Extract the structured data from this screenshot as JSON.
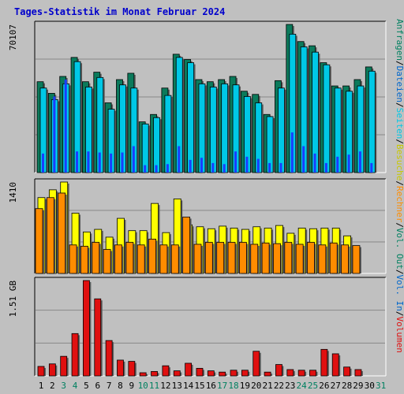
{
  "title": "Tages-Statistik im Monat Februar 2024",
  "colors": {
    "background": "#c0c0c0",
    "title": "#0000cc",
    "anfragen": "#0b7a5b",
    "dateien": "#00c8e6",
    "seiten": "#1a3cff",
    "besuche": "#ffff00",
    "rechner": "#ff8c00",
    "volumen": "#e01010",
    "weekend_label": "#008060",
    "weekday_label": "#000000"
  },
  "right_legend": [
    {
      "text": "Anfragen",
      "color": "#008060"
    },
    {
      "text": "/",
      "color": "#000000"
    },
    {
      "text": "Dateien",
      "color": "#0066cc"
    },
    {
      "text": "/",
      "color": "#000000"
    },
    {
      "text": "Seiten",
      "color": "#00c8e6"
    },
    {
      "text": "/",
      "color": "#000000"
    },
    {
      "text": "Besuche",
      "color": "#c8c800"
    },
    {
      "text": "/",
      "color": "#000000"
    },
    {
      "text": "Rechner",
      "color": "#ff8c00"
    },
    {
      "text": "/",
      "color": "#000000"
    },
    {
      "text": "Vol. Out",
      "color": "#008060"
    },
    {
      "text": "/",
      "color": "#000000"
    },
    {
      "text": "Vol. In",
      "color": "#0066cc"
    },
    {
      "text": "/",
      "color": "#000000"
    },
    {
      "text": "Volumen",
      "color": "#e01010"
    }
  ],
  "chart_data": [
    {
      "type": "bar",
      "panel": "anfragen-dateien-seiten",
      "ylabel": "70107",
      "ylim": [
        0,
        70107
      ],
      "grid": true,
      "categories": [
        "1",
        "2",
        "3",
        "4",
        "5",
        "6",
        "7",
        "8",
        "9",
        "10",
        "11",
        "12",
        "13",
        "14",
        "15",
        "16",
        "17",
        "18",
        "19",
        "20",
        "21",
        "22",
        "23",
        "24",
        "25",
        "26",
        "27",
        "28",
        "29",
        "30",
        "31"
      ],
      "weekend_days": [
        3,
        4,
        10,
        11,
        17,
        18,
        24,
        25,
        31
      ],
      "series": [
        {
          "name": "Anfragen",
          "values": [
            43000,
            37500,
            45500,
            54500,
            43000,
            47500,
            33000,
            44000,
            47000,
            24000,
            27500,
            40000,
            56000,
            53500,
            44000,
            43000,
            44000,
            45500,
            38500,
            37000,
            27500,
            43500,
            70107,
            62000,
            60000,
            52000,
            41000,
            41000,
            44000,
            50000,
            null
          ]
        },
        {
          "name": "Dateien",
          "values": [
            40000,
            34500,
            42000,
            52500,
            40500,
            45000,
            30000,
            41500,
            40000,
            23000,
            26000,
            36500,
            54500,
            52000,
            42000,
            40500,
            42000,
            41500,
            36000,
            33000,
            26500,
            40000,
            65500,
            59500,
            57000,
            51000,
            40000,
            38500,
            41000,
            48000,
            null
          ]
        },
        {
          "name": "Seiten",
          "values": [
            9000,
            36000,
            44000,
            10000,
            10000,
            9500,
            9000,
            9500,
            12500,
            3500,
            3500,
            4000,
            12500,
            6000,
            7000,
            4500,
            4000,
            10000,
            7500,
            6500,
            4500,
            4500,
            19000,
            12500,
            9000,
            4500,
            7500,
            8500,
            10000,
            4500,
            null
          ]
        }
      ]
    },
    {
      "type": "bar",
      "panel": "besuche-rechner",
      "ylabel": "1410",
      "ylim": [
        0,
        1410
      ],
      "grid": true,
      "categories": [
        "1",
        "2",
        "3",
        "4",
        "5",
        "6",
        "7",
        "8",
        "9",
        "10",
        "11",
        "12",
        "13",
        "14",
        "15",
        "16",
        "17",
        "18",
        "19",
        "20",
        "21",
        "22",
        "23",
        "24",
        "25",
        "26",
        "27",
        "28",
        "29",
        "30",
        "31"
      ],
      "series": [
        {
          "name": "Besuche",
          "values": [
            1170,
            1290,
            1410,
            930,
            640,
            680,
            560,
            850,
            660,
            660,
            1080,
            630,
            1150,
            750,
            720,
            690,
            730,
            700,
            680,
            720,
            700,
            740,
            620,
            700,
            690,
            700,
            700,
            580,
            null,
            null,
            null
          ]
        },
        {
          "name": "Rechner",
          "values": [
            1000,
            1170,
            1240,
            440,
            420,
            480,
            370,
            440,
            480,
            440,
            530,
            440,
            440,
            870,
            450,
            480,
            480,
            480,
            480,
            450,
            470,
            460,
            480,
            450,
            480,
            440,
            470,
            440,
            430,
            null,
            null
          ]
        }
      ]
    },
    {
      "type": "bar",
      "panel": "volumen",
      "ylabel": "1.51 GB",
      "ylim": [
        0,
        1.51
      ],
      "grid": true,
      "categories": [
        "1",
        "2",
        "3",
        "4",
        "5",
        "6",
        "7",
        "8",
        "9",
        "10",
        "11",
        "12",
        "13",
        "14",
        "15",
        "16",
        "17",
        "18",
        "19",
        "20",
        "21",
        "22",
        "23",
        "24",
        "25",
        "26",
        "27",
        "28",
        "29",
        "30",
        "31"
      ],
      "series": [
        {
          "name": "Volumen",
          "values": [
            0.15,
            0.19,
            0.31,
            0.67,
            1.51,
            1.22,
            0.56,
            0.25,
            0.23,
            0.05,
            0.07,
            0.16,
            0.08,
            0.2,
            0.12,
            0.08,
            0.06,
            0.09,
            0.09,
            0.39,
            0.06,
            0.18,
            0.1,
            0.09,
            0.09,
            0.42,
            0.35,
            0.14,
            0.1,
            null,
            null
          ]
        }
      ]
    }
  ]
}
